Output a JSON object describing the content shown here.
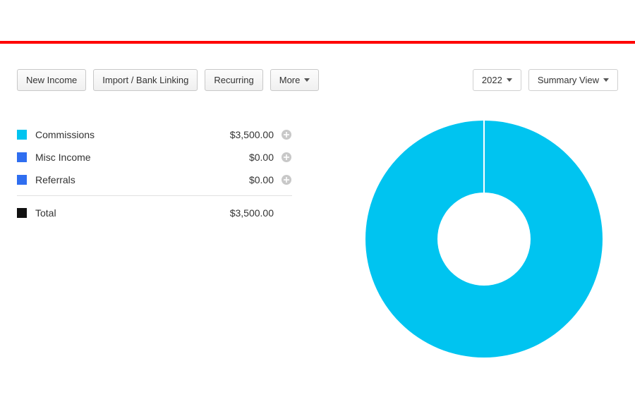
{
  "accent_bar_color": "#ff0000",
  "toolbar": {
    "new_income": "New Income",
    "import_bank": "Import / Bank Linking",
    "recurring": "Recurring",
    "more": "More"
  },
  "filters": {
    "year": "2022",
    "view": "Summary View"
  },
  "categories": [
    {
      "label": "Commissions",
      "amount": "$3,500.00",
      "swatch": "#00c4f0"
    },
    {
      "label": "Misc Income",
      "amount": "$0.00",
      "swatch": "#2f6ef0"
    },
    {
      "label": "Referrals",
      "amount": "$0.00",
      "swatch": "#2f6ef0"
    }
  ],
  "total": {
    "label": "Total",
    "amount": "$3,500.00",
    "swatch": "#111111"
  },
  "chart": {
    "type": "donut",
    "background_color": "#ffffff",
    "outer_radius": 168,
    "inner_radius": 66,
    "tick_color": "#ffffff",
    "tick_width": 2,
    "slices": [
      {
        "label": "Commissions",
        "value": 3500,
        "color": "#00c4f0"
      },
      {
        "label": "Misc Income",
        "value": 0,
        "color": "#2f6ef0"
      },
      {
        "label": "Referrals",
        "value": 0,
        "color": "#2f6ef0"
      }
    ]
  },
  "plus_icon_color": "#c8c8c8"
}
